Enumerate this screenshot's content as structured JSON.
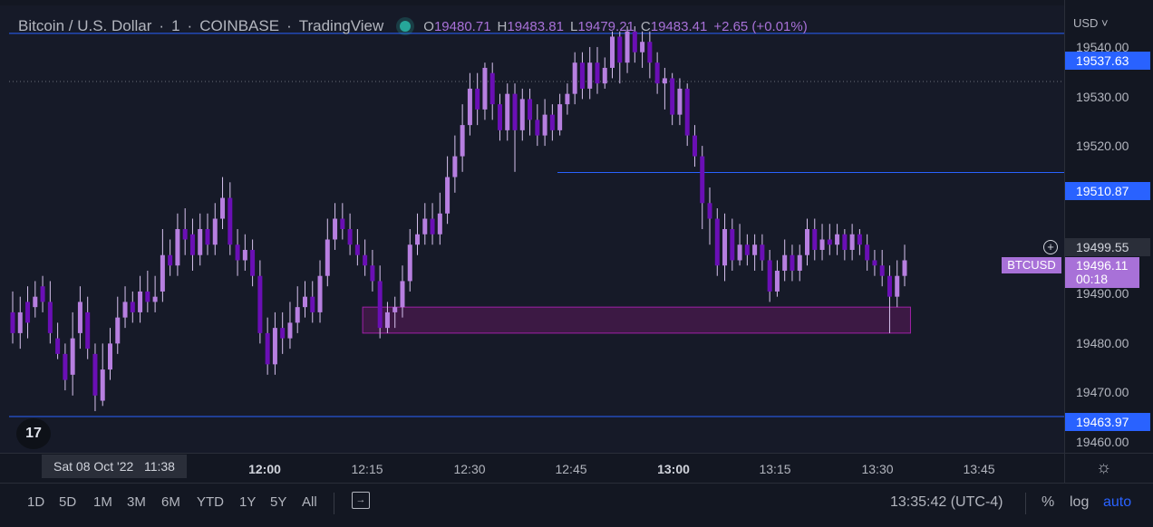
{
  "header": {
    "symbol": "Bitcoin / U.S. Dollar",
    "interval": "1",
    "exchange": "COINBASE",
    "source": "TradingView",
    "open_label": "O",
    "open": "19480.71",
    "high_label": "H",
    "high": "19483.81",
    "low_label": "L",
    "low": "19479.21",
    "close_label": "C",
    "close": "19483.41",
    "change": "+2.65 (+0.01%)"
  },
  "price_scale": {
    "currency": "USD ˅",
    "ticks": [
      "19540.00",
      "19530.00",
      "19520.00",
      "19510.00",
      "19500.00",
      "19490.00",
      "19480.00",
      "19470.00",
      "19460.00"
    ],
    "hline_labels": [
      "19537.63",
      "19510.87",
      "19463.97"
    ],
    "crosshair_price": "19499.55",
    "last_price": "19496.11",
    "countdown": "00:18",
    "symbol_tag": "BTCUSD"
  },
  "time_axis": {
    "labels": [
      "12:00",
      "12:15",
      "12:30",
      "12:45",
      "13:00",
      "13:15",
      "13:30",
      "13:45"
    ],
    "crosshair_date": "Sat 08 Oct '22",
    "crosshair_time": "11:38"
  },
  "bottom_bar": {
    "ranges": [
      "1D",
      "5D",
      "1M",
      "3M",
      "6M",
      "YTD",
      "1Y",
      "5Y",
      "All"
    ],
    "clock": "13:35:42 (UTC-4)",
    "percent": "%",
    "log": "log",
    "auto": "auto"
  },
  "logo_text": "17",
  "colors": {
    "bull": "#b77fe0",
    "bear": "#6a0fb5",
    "hline": "#2962ff",
    "zone_fill": "#4a1a4e",
    "zone_border": "#a020a8",
    "background": "#161a28"
  },
  "chart_data": {
    "type": "candlestick",
    "x_range": [
      "11:38",
      "13:45"
    ],
    "y_range": [
      19457,
      19543
    ],
    "horizontal_lines": [
      19537.63,
      19510.87,
      19463.97
    ],
    "rectangle": {
      "from": "12:24",
      "to": "13:36",
      "low": 19480.0,
      "high": 19485.0
    },
    "candles": [
      [
        19484,
        19480,
        19488,
        19478
      ],
      [
        19480,
        19484,
        19487,
        19477
      ],
      [
        19486,
        19482,
        19489,
        19479
      ],
      [
        19485,
        19487,
        19490,
        19483
      ],
      [
        19489,
        19486,
        19491,
        19484
      ],
      [
        19486,
        19480,
        19490,
        19478
      ],
      [
        19479,
        19476,
        19482,
        19475
      ],
      [
        19476,
        19471,
        19478,
        19469
      ],
      [
        19472,
        19479,
        19484,
        19468
      ],
      [
        19480,
        19486,
        19489,
        19477
      ],
      [
        19484,
        19477,
        19487,
        19475
      ],
      [
        19476,
        19468,
        19478,
        19465
      ],
      [
        19467,
        19473,
        19478,
        19466
      ],
      [
        19473,
        19478,
        19481,
        19471
      ],
      [
        19478,
        19483,
        19487,
        19476
      ],
      [
        19483,
        19486,
        19489,
        19481
      ],
      [
        19486,
        19484,
        19488,
        19482
      ],
      [
        19484,
        19488,
        19491,
        19482
      ],
      [
        19488,
        19486,
        19492,
        19484
      ],
      [
        19486,
        19487,
        19491,
        19484
      ],
      [
        19488,
        19495,
        19500,
        19486
      ],
      [
        19495,
        19493,
        19498,
        19491
      ],
      [
        19493,
        19500,
        19503,
        19491
      ],
      [
        19500,
        19498,
        19504,
        19495
      ],
      [
        19499,
        19495,
        19502,
        19492
      ],
      [
        19495,
        19500,
        19503,
        19493
      ],
      [
        19500,
        19497,
        19503,
        19495
      ],
      [
        19497,
        19502,
        19505,
        19495
      ],
      [
        19502,
        19506,
        19510,
        19500
      ],
      [
        19506,
        19497,
        19509,
        19495
      ],
      [
        19497,
        19494,
        19500,
        19491
      ],
      [
        19494,
        19496,
        19499,
        19492
      ],
      [
        19496,
        19491,
        19498,
        19489
      ],
      [
        19491,
        19480,
        19494,
        19478
      ],
      [
        19480,
        19474,
        19483,
        19472
      ],
      [
        19474,
        19481,
        19484,
        19472
      ],
      [
        19481,
        19479,
        19484,
        19476
      ],
      [
        19479,
        19482,
        19486,
        19477
      ],
      [
        19482,
        19485,
        19489,
        19480
      ],
      [
        19485,
        19487,
        19490,
        19483
      ],
      [
        19487,
        19484,
        19490,
        19482
      ],
      [
        19484,
        19491,
        19494,
        19482
      ],
      [
        19491,
        19498,
        19502,
        19489
      ],
      [
        19498,
        19502,
        19505,
        19496
      ],
      [
        19502,
        19500,
        19505,
        19498
      ],
      [
        19500,
        19497,
        19503,
        19495
      ],
      [
        19497,
        19495,
        19500,
        19493
      ],
      [
        19495,
        19493,
        19498,
        19491
      ],
      [
        19493,
        19490,
        19496,
        19488
      ],
      [
        19490,
        19481,
        19493,
        19479
      ],
      [
        19481,
        19484,
        19486,
        19480
      ],
      [
        19484,
        19485,
        19487,
        19481
      ],
      [
        19485,
        19490,
        19493,
        19483
      ],
      [
        19490,
        19497,
        19500,
        19488
      ],
      [
        19497,
        19499,
        19503,
        19495
      ],
      [
        19499,
        19502,
        19505,
        19497
      ],
      [
        19502,
        19499,
        19505,
        19497
      ],
      [
        19499,
        19503,
        19507,
        19497
      ],
      [
        19503,
        19510,
        19514,
        19501
      ],
      [
        19510,
        19514,
        19518,
        19507
      ],
      [
        19514,
        19520,
        19524,
        19511
      ],
      [
        19520,
        19527,
        19530,
        19518
      ],
      [
        19527,
        19523,
        19530,
        19520
      ],
      [
        19523,
        19531,
        19532,
        19521
      ],
      [
        19530,
        19524,
        19532,
        19521
      ],
      [
        19524,
        19519,
        19526,
        19517
      ],
      [
        19519,
        19526,
        19528,
        19517
      ],
      [
        19526,
        19519,
        19528,
        19511
      ],
      [
        19519,
        19525,
        19527,
        19517
      ],
      [
        19525,
        19521,
        19527,
        19518
      ],
      [
        19521,
        19518,
        19524,
        19516
      ],
      [
        19518,
        19522,
        19525,
        19516
      ],
      [
        19522,
        19519,
        19524,
        19517
      ],
      [
        19519,
        19524,
        19526,
        19518
      ],
      [
        19524,
        19526,
        19528,
        19522
      ],
      [
        19526,
        19532,
        19534,
        19524
      ],
      [
        19532,
        19527,
        19534,
        19525
      ],
      [
        19527,
        19532,
        19535,
        19525
      ],
      [
        19532,
        19528,
        19535,
        19526
      ],
      [
        19528,
        19531,
        19533,
        19527
      ],
      [
        19531,
        19537,
        19538,
        19529
      ],
      [
        19537,
        19532,
        19538,
        19528
      ],
      [
        19532,
        19538,
        19539,
        19530
      ],
      [
        19538,
        19534,
        19539,
        19532
      ],
      [
        19534,
        19536,
        19538,
        19531
      ],
      [
        19536,
        19532,
        19538,
        19529
      ],
      [
        19532,
        19528,
        19534,
        19526
      ],
      [
        19528,
        19529,
        19531,
        19523
      ],
      [
        19529,
        19522,
        19530,
        19520
      ],
      [
        19522,
        19527,
        19529,
        19520
      ],
      [
        19527,
        19518,
        19528,
        19516
      ],
      [
        19518,
        19514,
        19520,
        19512
      ],
      [
        19514,
        19505,
        19516,
        19500
      ],
      [
        19505,
        19502,
        19508,
        19497
      ],
      [
        19502,
        19493,
        19504,
        19491
      ],
      [
        19493,
        19500,
        19503,
        19490
      ],
      [
        19500,
        19494,
        19502,
        19492
      ],
      [
        19494,
        19497,
        19501,
        19493
      ],
      [
        19497,
        19495,
        19499,
        19493
      ],
      [
        19495,
        19497,
        19499,
        19492
      ],
      [
        19497,
        19494,
        19499,
        19492
      ],
      [
        19494,
        19488,
        19496,
        19486
      ],
      [
        19488,
        19492,
        19494,
        19487
      ],
      [
        19492,
        19495,
        19498,
        19490
      ],
      [
        19495,
        19492,
        19497,
        19490
      ],
      [
        19492,
        19495,
        19497,
        19490
      ],
      [
        19495,
        19500,
        19502,
        19493
      ],
      [
        19500,
        19496,
        19502,
        19494
      ],
      [
        19496,
        19498,
        19501,
        19494
      ],
      [
        19498,
        19497,
        19501,
        19495
      ],
      [
        19497,
        19499,
        19501,
        19495
      ],
      [
        19499,
        19496,
        19500,
        19494
      ],
      [
        19496,
        19499,
        19501,
        19494
      ],
      [
        19499,
        19497,
        19500,
        19495
      ],
      [
        19497,
        19494,
        19499,
        19492
      ],
      [
        19494,
        19493,
        19496,
        19491
      ],
      [
        19493,
        19491,
        19496,
        19489
      ],
      [
        19491,
        19487,
        19493,
        19480
      ],
      [
        19487,
        19491,
        19494,
        19485
      ],
      [
        19491,
        19494,
        19497,
        19489
      ]
    ]
  }
}
